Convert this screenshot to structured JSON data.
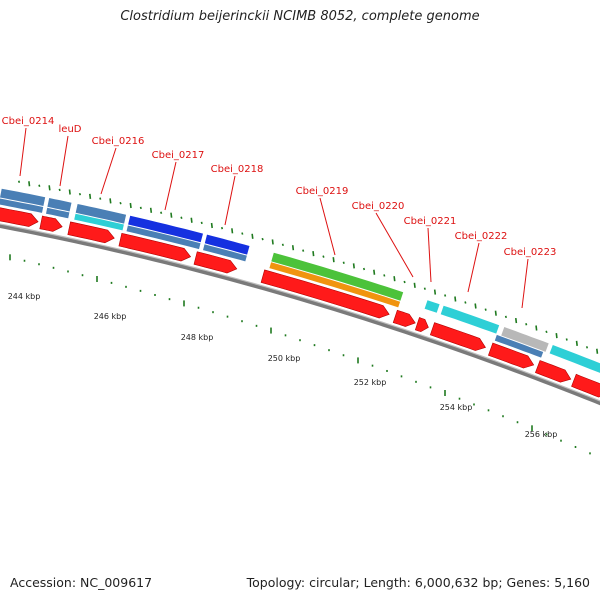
{
  "title": "Clostridium beijerinckii NCIMB 8052, complete genome",
  "footer": {
    "accession": "Accession: NC_009617",
    "summary": "Topology: circular; Length: 6,000,632 bp; Genes: 5,160"
  },
  "colors": {
    "cds": "#ff1a1a",
    "backbone": "#7a7a7a",
    "tick": "#1f7a1f",
    "label": "#dd1111",
    "steelblue": "#4a7fb5",
    "cyan": "#2ecfd6",
    "blue": "#1530e0",
    "green": "#4cc23a",
    "orange": "#f0940f",
    "gray": "#b8b8b8"
  },
  "gene_labels": [
    "Cbei_0214",
    "leuD",
    "Cbei_0216",
    "Cbei_0217",
    "Cbei_0218",
    "Cbei_0219",
    "Cbei_0220",
    "Cbei_0221",
    "Cbei_0222",
    "Cbei_0223"
  ],
  "kbp_labels": [
    "244 kbp",
    "246 kbp",
    "248 kbp",
    "250 kbp",
    "252 kbp",
    "254 kbp",
    "256 kbp"
  ]
}
